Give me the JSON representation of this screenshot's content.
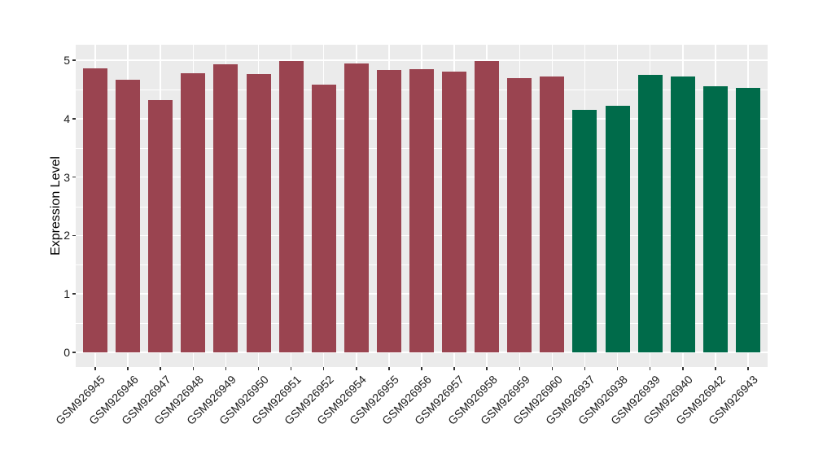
{
  "figure": {
    "background_color": "#FFFFFF",
    "panel_background_color": "#EBEBEB",
    "gridline_color": "#FFFFFF",
    "tick_mark_color": "#333333",
    "axis_text_color": "#1A1A1A"
  },
  "chart_data": {
    "type": "bar",
    "title": "",
    "xlabel": "",
    "ylabel": "Expression Level",
    "ylim": [
      0,
      5
    ],
    "yticks": [
      0,
      1,
      2,
      3,
      4,
      5
    ],
    "minor_yticks": [
      0.5,
      1.5,
      2.5,
      3.5,
      4.5
    ],
    "grid": "major and minor horizontal white lines plus vertical white line at each category, on gray panel",
    "legend_position": "none",
    "x_tick_rotation_deg": 45,
    "categories": [
      "GSM926945",
      "GSM926946",
      "GSM926947",
      "GSM926948",
      "GSM926949",
      "GSM926950",
      "GSM926951",
      "GSM926952",
      "GSM926954",
      "GSM926955",
      "GSM926956",
      "GSM926957",
      "GSM926958",
      "GSM926959",
      "GSM926960",
      "GSM926937",
      "GSM926938",
      "GSM926939",
      "GSM926940",
      "GSM926942",
      "GSM926943"
    ],
    "values": [
      4.86,
      4.66,
      4.32,
      4.78,
      4.93,
      4.76,
      4.98,
      4.58,
      4.94,
      4.83,
      4.84,
      4.8,
      4.98,
      4.7,
      4.72,
      4.15,
      4.22,
      4.75,
      4.72,
      4.55,
      4.53
    ],
    "bar_colors": [
      "#9A4450",
      "#9A4450",
      "#9A4450",
      "#9A4450",
      "#9A4450",
      "#9A4450",
      "#9A4450",
      "#9A4450",
      "#9A4450",
      "#9A4450",
      "#9A4450",
      "#9A4450",
      "#9A4450",
      "#9A4450",
      "#9A4450",
      "#006B4A",
      "#006B4A",
      "#006B4A",
      "#006B4A",
      "#006B4A",
      "#006B4A"
    ],
    "color_groups": [
      {
        "color": "#9A4450",
        "samples": "GSM926945-GSM926960 (no GSM926953)"
      },
      {
        "color": "#006B4A",
        "samples": "GSM926937-GSM926943 (no GSM926941)"
      }
    ]
  }
}
